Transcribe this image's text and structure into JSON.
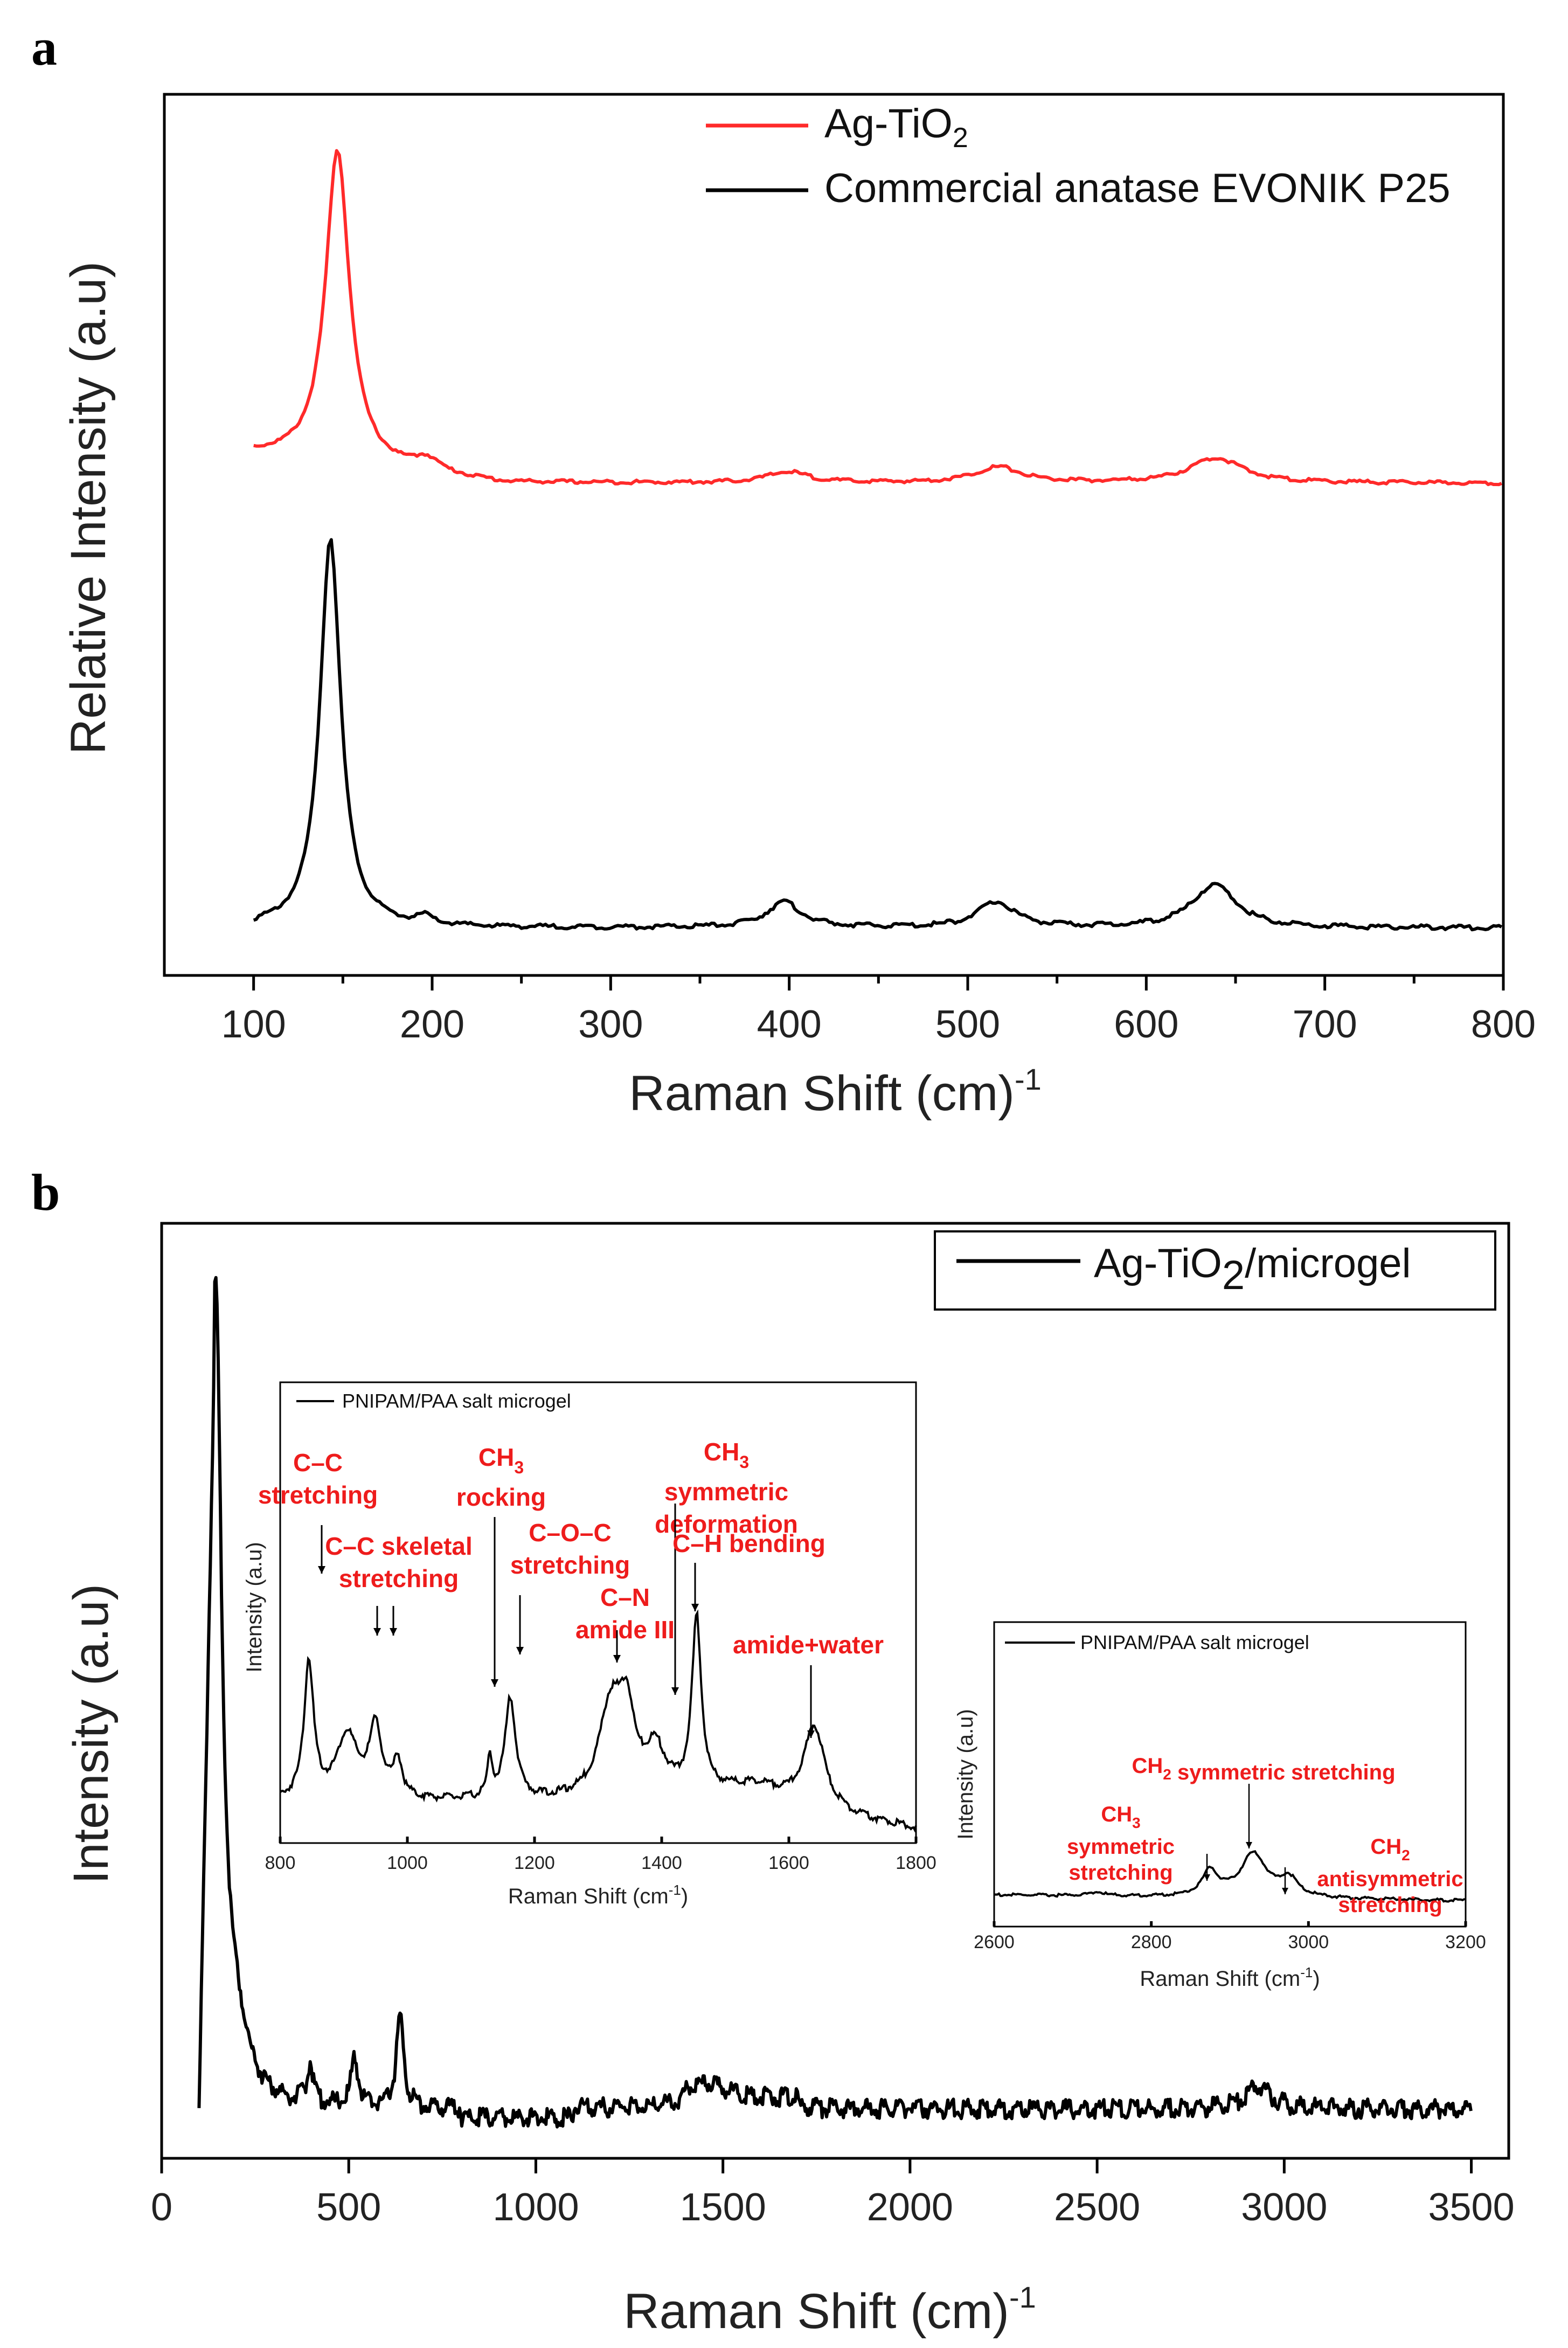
{
  "chart_data": [
    {
      "panel": "a",
      "type": "line",
      "xlabel": "Raman Shift (cm)",
      "xlabel_sup": "-1",
      "ylabel": "Relative Intensity (a.u)",
      "xlim": [
        50,
        800
      ],
      "xticks": [
        100,
        200,
        300,
        400,
        500,
        600,
        700,
        800
      ],
      "legend_position": "top-right",
      "series": [
        {
          "name": "Ag-TiO",
          "name_sub": "2",
          "color": "#ff2a2a",
          "peaks": [
            [
              147,
              1.0,
              8
            ],
            [
              197,
              0.04,
              8
            ],
            [
              399,
              0.035,
              14
            ],
            [
              517,
              0.05,
              16
            ],
            [
              639,
              0.08,
              18
            ]
          ],
          "baseline_start": 0.09,
          "baseline_end": 0.0,
          "x_range": [
            100,
            800
          ]
        },
        {
          "name": "Commercial anatase EVONIK P25",
          "color": "#000000",
          "peaks": [
            [
              143,
              1.0,
              7
            ],
            [
              196,
              0.02,
              5
            ],
            [
              397,
              0.065,
              12
            ],
            [
              516,
              0.065,
              13
            ],
            [
              638,
              0.11,
              15
            ]
          ],
          "baseline_start": 0.0,
          "baseline_end": 0.0,
          "x_range": [
            100,
            800
          ]
        }
      ]
    },
    {
      "panel": "b",
      "type": "line",
      "xlabel": "Raman Shift (cm)",
      "xlabel_sup": "-1",
      "ylabel": "Intensity (a.u)",
      "xlim": [
        0,
        3600
      ],
      "xticks": [
        0,
        500,
        1000,
        1500,
        2000,
        2500,
        3000,
        3500
      ],
      "legend_position": "top-right",
      "series": [
        {
          "name": "Ag-TiO",
          "name_sub": "2",
          "name_suffix": "/microgel",
          "color": "#000000",
          "peaks": [
            [
              144,
              1.0,
              20
            ],
            [
              200,
              0.07,
              40
            ],
            [
              397,
              0.05,
              10
            ],
            [
              516,
              0.06,
              11
            ],
            [
              637,
              0.11,
              12
            ],
            [
              1450,
              0.02,
              80
            ],
            [
              2930,
              0.03,
              40
            ]
          ],
          "x_range": [
            100,
            3500
          ]
        }
      ],
      "insets": [
        {
          "legend": "PNIPAM/PAA salt microgel",
          "xlabel": "Raman Shift (cm",
          "xlabel_sup": "-1",
          "xlabel_close": ")",
          "ylabel": "Intensity (a.u)",
          "xlim": [
            800,
            1800
          ],
          "xticks": [
            800,
            1000,
            1200,
            1400,
            1600,
            1800
          ],
          "peaks": [
            [
              845,
              0.75,
              9
            ],
            [
              905,
              0.35,
              20
            ],
            [
              950,
              0.38,
              12
            ],
            [
              985,
              0.2,
              8
            ],
            [
              1130,
              0.2,
              5
            ],
            [
              1162,
              0.55,
              10
            ],
            [
              1320,
              0.5,
              22
            ],
            [
              1345,
              0.4,
              14
            ],
            [
              1390,
              0.25,
              20
            ],
            [
              1455,
              0.95,
              9
            ],
            [
              1550,
              0.1,
              60
            ],
            [
              1640,
              0.45,
              20
            ]
          ],
          "annotations": [
            {
              "lines": [
                "C–C",
                "stretching"
              ],
              "x": 850
            },
            {
              "lines": [
                "C–C skeletal",
                "stretching"
              ],
              "x": 955
            },
            {
              "lines": [
                "CH",
                "rocking"
              ],
              "sub": "3",
              "x": 1140
            },
            {
              "lines": [
                "C–O–C",
                "stretching"
              ],
              "x": 1172
            },
            {
              "lines": [
                "C–N",
                "amide III"
              ],
              "x": 1335
            },
            {
              "lines": [
                "CH",
                "symmetric",
                "deformation"
              ],
              "sub": "3",
              "x": 1420
            },
            {
              "lines": [
                "C–H bending"
              ],
              "x": 1460
            },
            {
              "lines": [
                "amide+water"
              ],
              "x": 1642
            }
          ]
        },
        {
          "legend": "PNIPAM/PAA salt microgel",
          "xlabel": "Raman Shift (cm",
          "xlabel_sup": "-1",
          "xlabel_close": ")",
          "ylabel": "Intensity (a.u)",
          "xlim": [
            2600,
            3200
          ],
          "xticks": [
            2600,
            2800,
            3000,
            3200
          ],
          "peaks": [
            [
              2730,
              0.05,
              12
            ],
            [
              2875,
              0.35,
              12
            ],
            [
              2930,
              0.6,
              20
            ],
            [
              2975,
              0.25,
              14
            ]
          ],
          "annotations": [
            {
              "lines": [
                "CH",
                "symmetric stretching"
              ],
              "sub": "2",
              "x": 2930
            },
            {
              "lines": [
                "CH",
                "symmetric",
                "stretching"
              ],
              "sub": "3",
              "x": 2875
            },
            {
              "lines": [
                "CH",
                "antisymmetric",
                "stretching"
              ],
              "sub": "2",
              "x": 2975
            }
          ]
        }
      ]
    }
  ],
  "panel_labels": {
    "a": "a",
    "b": "b"
  }
}
